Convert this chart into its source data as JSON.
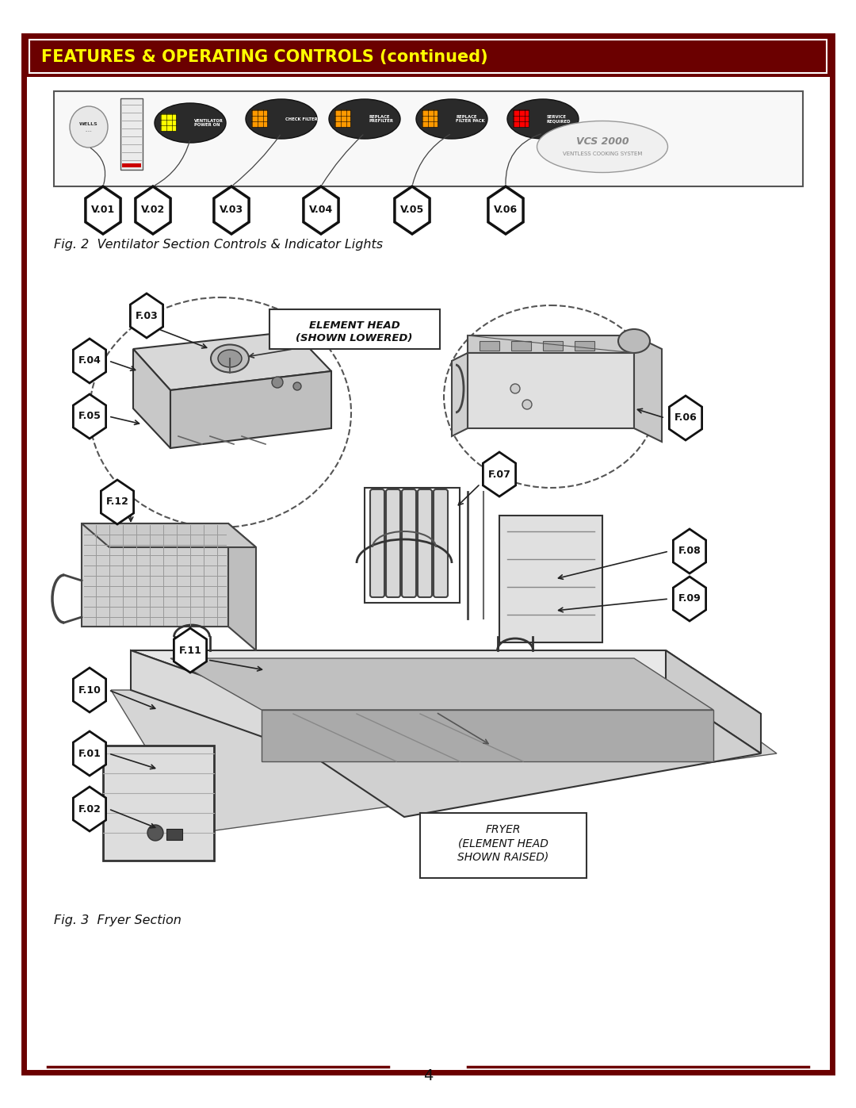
{
  "title": "FEATURES & OPERATING CONTROLS (continued)",
  "title_color": "#FFFF00",
  "title_bg": "#6B0000",
  "border_color": "#6B0000",
  "page_bg": "#FFFFFF",
  "fig2_caption": "Fig. 2  Ventilator Section Controls & Indicator Lights",
  "fig3_caption": "Fig. 3  Fryer Section",
  "page_number": "4",
  "v_labels": [
    "V.01",
    "V.02",
    "V.03",
    "V.04",
    "V.05",
    "V.06"
  ],
  "f_labels": [
    "F.03",
    "F.04",
    "F.05",
    "F.06",
    "F.07",
    "F.08",
    "F.09",
    "F.10",
    "F.11",
    "F.12",
    "F.01",
    "F.02"
  ],
  "element_head_text": "ELEMENT HEAD\n(SHOWN LOWERED)",
  "fryer_text": "FRYER\n(ELEMENT HEAD\nSHOWN RAISED)"
}
